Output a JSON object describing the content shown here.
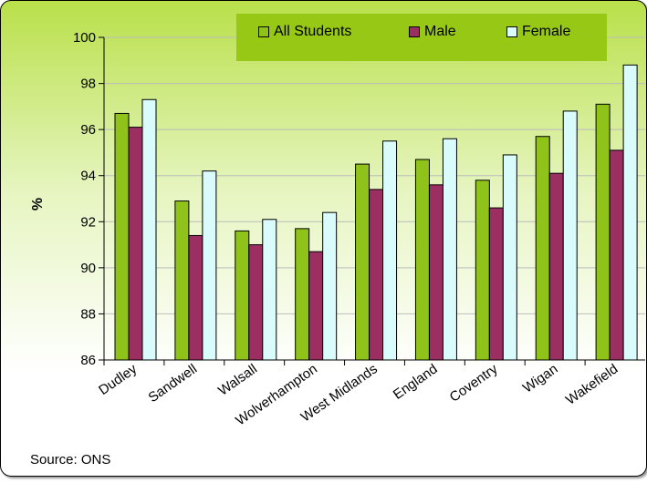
{
  "chart_data": {
    "type": "bar",
    "categories": [
      "Dudley",
      "Sandwell",
      "Walsall",
      "Wolverhampton",
      "West Midlands",
      "England",
      "Coventry",
      "Wigan",
      "Wakefield"
    ],
    "series": [
      {
        "name": "All Students",
        "color": "#8fc31a",
        "values": [
          96.7,
          92.9,
          91.6,
          91.7,
          94.5,
          94.7,
          93.8,
          95.7,
          97.1
        ]
      },
      {
        "name": "Male",
        "color": "#9b2f61",
        "values": [
          96.1,
          91.4,
          91.0,
          90.7,
          93.4,
          93.6,
          92.6,
          94.1,
          95.1
        ]
      },
      {
        "name": "Female",
        "color": "#d9fbfb",
        "values": [
          97.3,
          94.2,
          92.1,
          92.4,
          95.5,
          95.6,
          94.9,
          96.8,
          98.8
        ]
      }
    ],
    "ylabel": "%",
    "ylim": [
      86,
      100
    ],
    "yticks": [
      86,
      88,
      90,
      92,
      94,
      96,
      98,
      100
    ],
    "grid": true,
    "legend_position": "top"
  },
  "source": "Source: ONS"
}
